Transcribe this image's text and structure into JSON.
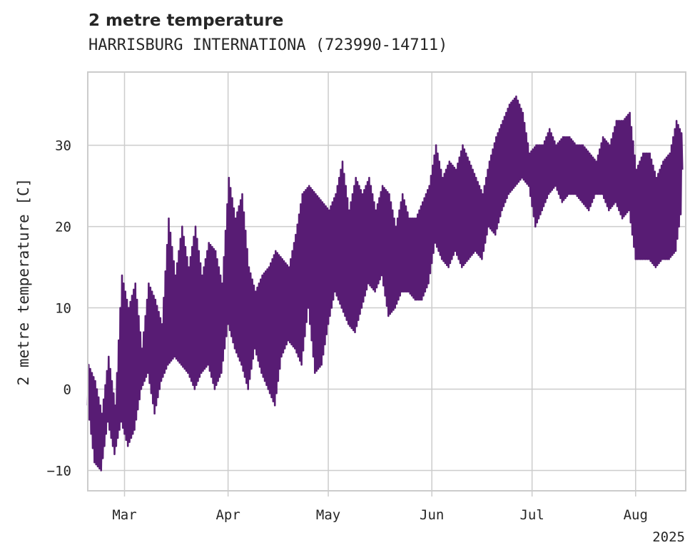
{
  "chart_data": {
    "type": "line",
    "title": "2 metre temperature",
    "subtitle": "HARRISBURG INTERNATIONA (723990-14711)",
    "ylabel": "2 metre temperature [C]",
    "xlabel": "",
    "year_label": "2025",
    "x_range": [
      "2025-02-18",
      "2025-08-16"
    ],
    "ylim": [
      -12.5,
      39
    ],
    "grid": true,
    "line_color": "#581c74",
    "y_ticks": [
      -10,
      0,
      10,
      20,
      30
    ],
    "y_tick_labels": [
      "−10",
      "0",
      "10",
      "20",
      "30"
    ],
    "x_ticks": [
      {
        "date": "2025-03-01",
        "label": "Mar"
      },
      {
        "date": "2025-04-01",
        "label": "Apr"
      },
      {
        "date": "2025-05-01",
        "label": "May"
      },
      {
        "date": "2025-06-01",
        "label": "Jun"
      },
      {
        "date": "2025-07-01",
        "label": "Jul"
      },
      {
        "date": "2025-08-01",
        "label": "Aug"
      }
    ],
    "series": [
      {
        "x": [
          "2025-02-18",
          "2025-02-20",
          "2025-02-22",
          "2025-02-24",
          "2025-02-26",
          "2025-02-28",
          "2025-03-02",
          "2025-03-04",
          "2025-03-06",
          "2025-03-08",
          "2025-03-10",
          "2025-03-12",
          "2025-03-14",
          "2025-03-16",
          "2025-03-18",
          "2025-03-20",
          "2025-03-22",
          "2025-03-24",
          "2025-03-26",
          "2025-03-28",
          "2025-03-30",
          "2025-04-01",
          "2025-04-03",
          "2025-04-05",
          "2025-04-07",
          "2025-04-09",
          "2025-04-11",
          "2025-04-13",
          "2025-04-15",
          "2025-04-17",
          "2025-04-19",
          "2025-04-21",
          "2025-04-23",
          "2025-04-25",
          "2025-04-27",
          "2025-04-29",
          "2025-05-01",
          "2025-05-03",
          "2025-05-05",
          "2025-05-07",
          "2025-05-09",
          "2025-05-11",
          "2025-05-13",
          "2025-05-15",
          "2025-05-17",
          "2025-05-19",
          "2025-05-21",
          "2025-05-23",
          "2025-05-25",
          "2025-05-27",
          "2025-05-29",
          "2025-05-31",
          "2025-06-02",
          "2025-06-04",
          "2025-06-06",
          "2025-06-08",
          "2025-06-10",
          "2025-06-12",
          "2025-06-14",
          "2025-06-16",
          "2025-06-18",
          "2025-06-20",
          "2025-06-22",
          "2025-06-24",
          "2025-06-26",
          "2025-06-28",
          "2025-06-30",
          "2025-07-02",
          "2025-07-04",
          "2025-07-06",
          "2025-07-08",
          "2025-07-10",
          "2025-07-12",
          "2025-07-14",
          "2025-07-16",
          "2025-07-18",
          "2025-07-20",
          "2025-07-22",
          "2025-07-24",
          "2025-07-26",
          "2025-07-28",
          "2025-07-30",
          "2025-08-01",
          "2025-08-03",
          "2025-08-05",
          "2025-08-07",
          "2025-08-09",
          "2025-08-11",
          "2025-08-13",
          "2025-08-15"
        ],
        "low": [
          -2,
          -9,
          -10,
          -4,
          -8,
          -4,
          -7,
          -5,
          0,
          2,
          -3,
          1,
          3,
          4,
          3,
          2,
          0,
          2,
          3,
          0,
          2,
          8,
          5,
          3,
          0,
          5,
          2,
          0,
          -2,
          4,
          6,
          5,
          3,
          10,
          2,
          3,
          8,
          12,
          10,
          8,
          7,
          10,
          13,
          12,
          14,
          9,
          10,
          12,
          12,
          11,
          11,
          13,
          18,
          16,
          15,
          17,
          15,
          16,
          17,
          16,
          20,
          19,
          22,
          24,
          25,
          26,
          25,
          20,
          22,
          24,
          25,
          23,
          24,
          24,
          23,
          22,
          24,
          24,
          22,
          23,
          21,
          22,
          16,
          16,
          16,
          15,
          16,
          16,
          17,
          23
        ],
        "high": [
          3,
          1,
          -3,
          4,
          -2,
          14,
          10,
          13,
          5,
          13,
          11,
          8,
          21,
          14,
          20,
          15,
          20,
          14,
          18,
          17,
          13,
          26,
          21,
          24,
          15,
          12,
          14,
          15,
          17,
          16,
          15,
          19,
          24,
          25,
          24,
          23,
          22,
          24,
          28,
          22,
          26,
          24,
          26,
          22,
          25,
          24,
          20,
          24,
          21,
          21,
          23,
          25,
          30,
          26,
          28,
          27,
          30,
          28,
          26,
          24,
          28,
          31,
          33,
          35,
          36,
          34,
          29,
          30,
          30,
          32,
          30,
          31,
          31,
          30,
          30,
          29,
          28,
          31,
          30,
          33,
          33,
          34,
          27,
          29,
          29,
          26,
          28,
          29,
          33,
          31
        ]
      }
    ]
  }
}
